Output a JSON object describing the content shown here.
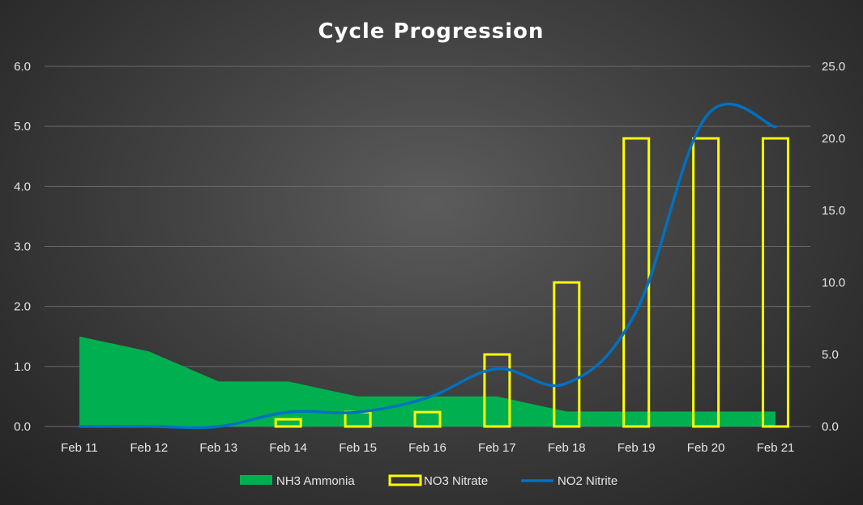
{
  "chart_data": {
    "type": "bar",
    "title": "Cycle Progression",
    "categories": [
      "Feb 11",
      "Feb 12",
      "Feb 13",
      "Feb 14",
      "Feb 15",
      "Feb 16",
      "Feb 17",
      "Feb 18",
      "Feb 19",
      "Feb 20",
      "Feb 21"
    ],
    "y_left": {
      "ylim": [
        0,
        6
      ],
      "ticks": [
        "0.0",
        "1.0",
        "2.0",
        "3.0",
        "4.0",
        "5.0",
        "6.0"
      ]
    },
    "y_right": {
      "ylim": [
        0,
        25
      ],
      "ticks": [
        "0.0",
        "5.0",
        "10.0",
        "15.0",
        "20.0",
        "25.0"
      ]
    },
    "grid": true,
    "legend_position": "bottom",
    "series": [
      {
        "name": "NH3 Ammonia",
        "type": "area",
        "axis": "left",
        "color": "#00b050",
        "values": [
          1.5,
          1.25,
          0.75,
          0.75,
          0.5,
          0.5,
          0.5,
          0.25,
          0.25,
          0.25,
          0.25
        ]
      },
      {
        "name": "NO3 Nitrate",
        "type": "bar",
        "axis": "right",
        "color": "#ffff00",
        "values": [
          0,
          0,
          0,
          0.5,
          1,
          1,
          5,
          10,
          20,
          20,
          20
        ]
      },
      {
        "name": "NO2 Nitrite",
        "type": "line",
        "axis": "right",
        "smooth": true,
        "color": "#0070c0",
        "values": [
          0,
          0,
          0,
          1,
          1,
          2,
          4,
          3,
          8,
          21.5,
          20.8
        ]
      }
    ]
  }
}
